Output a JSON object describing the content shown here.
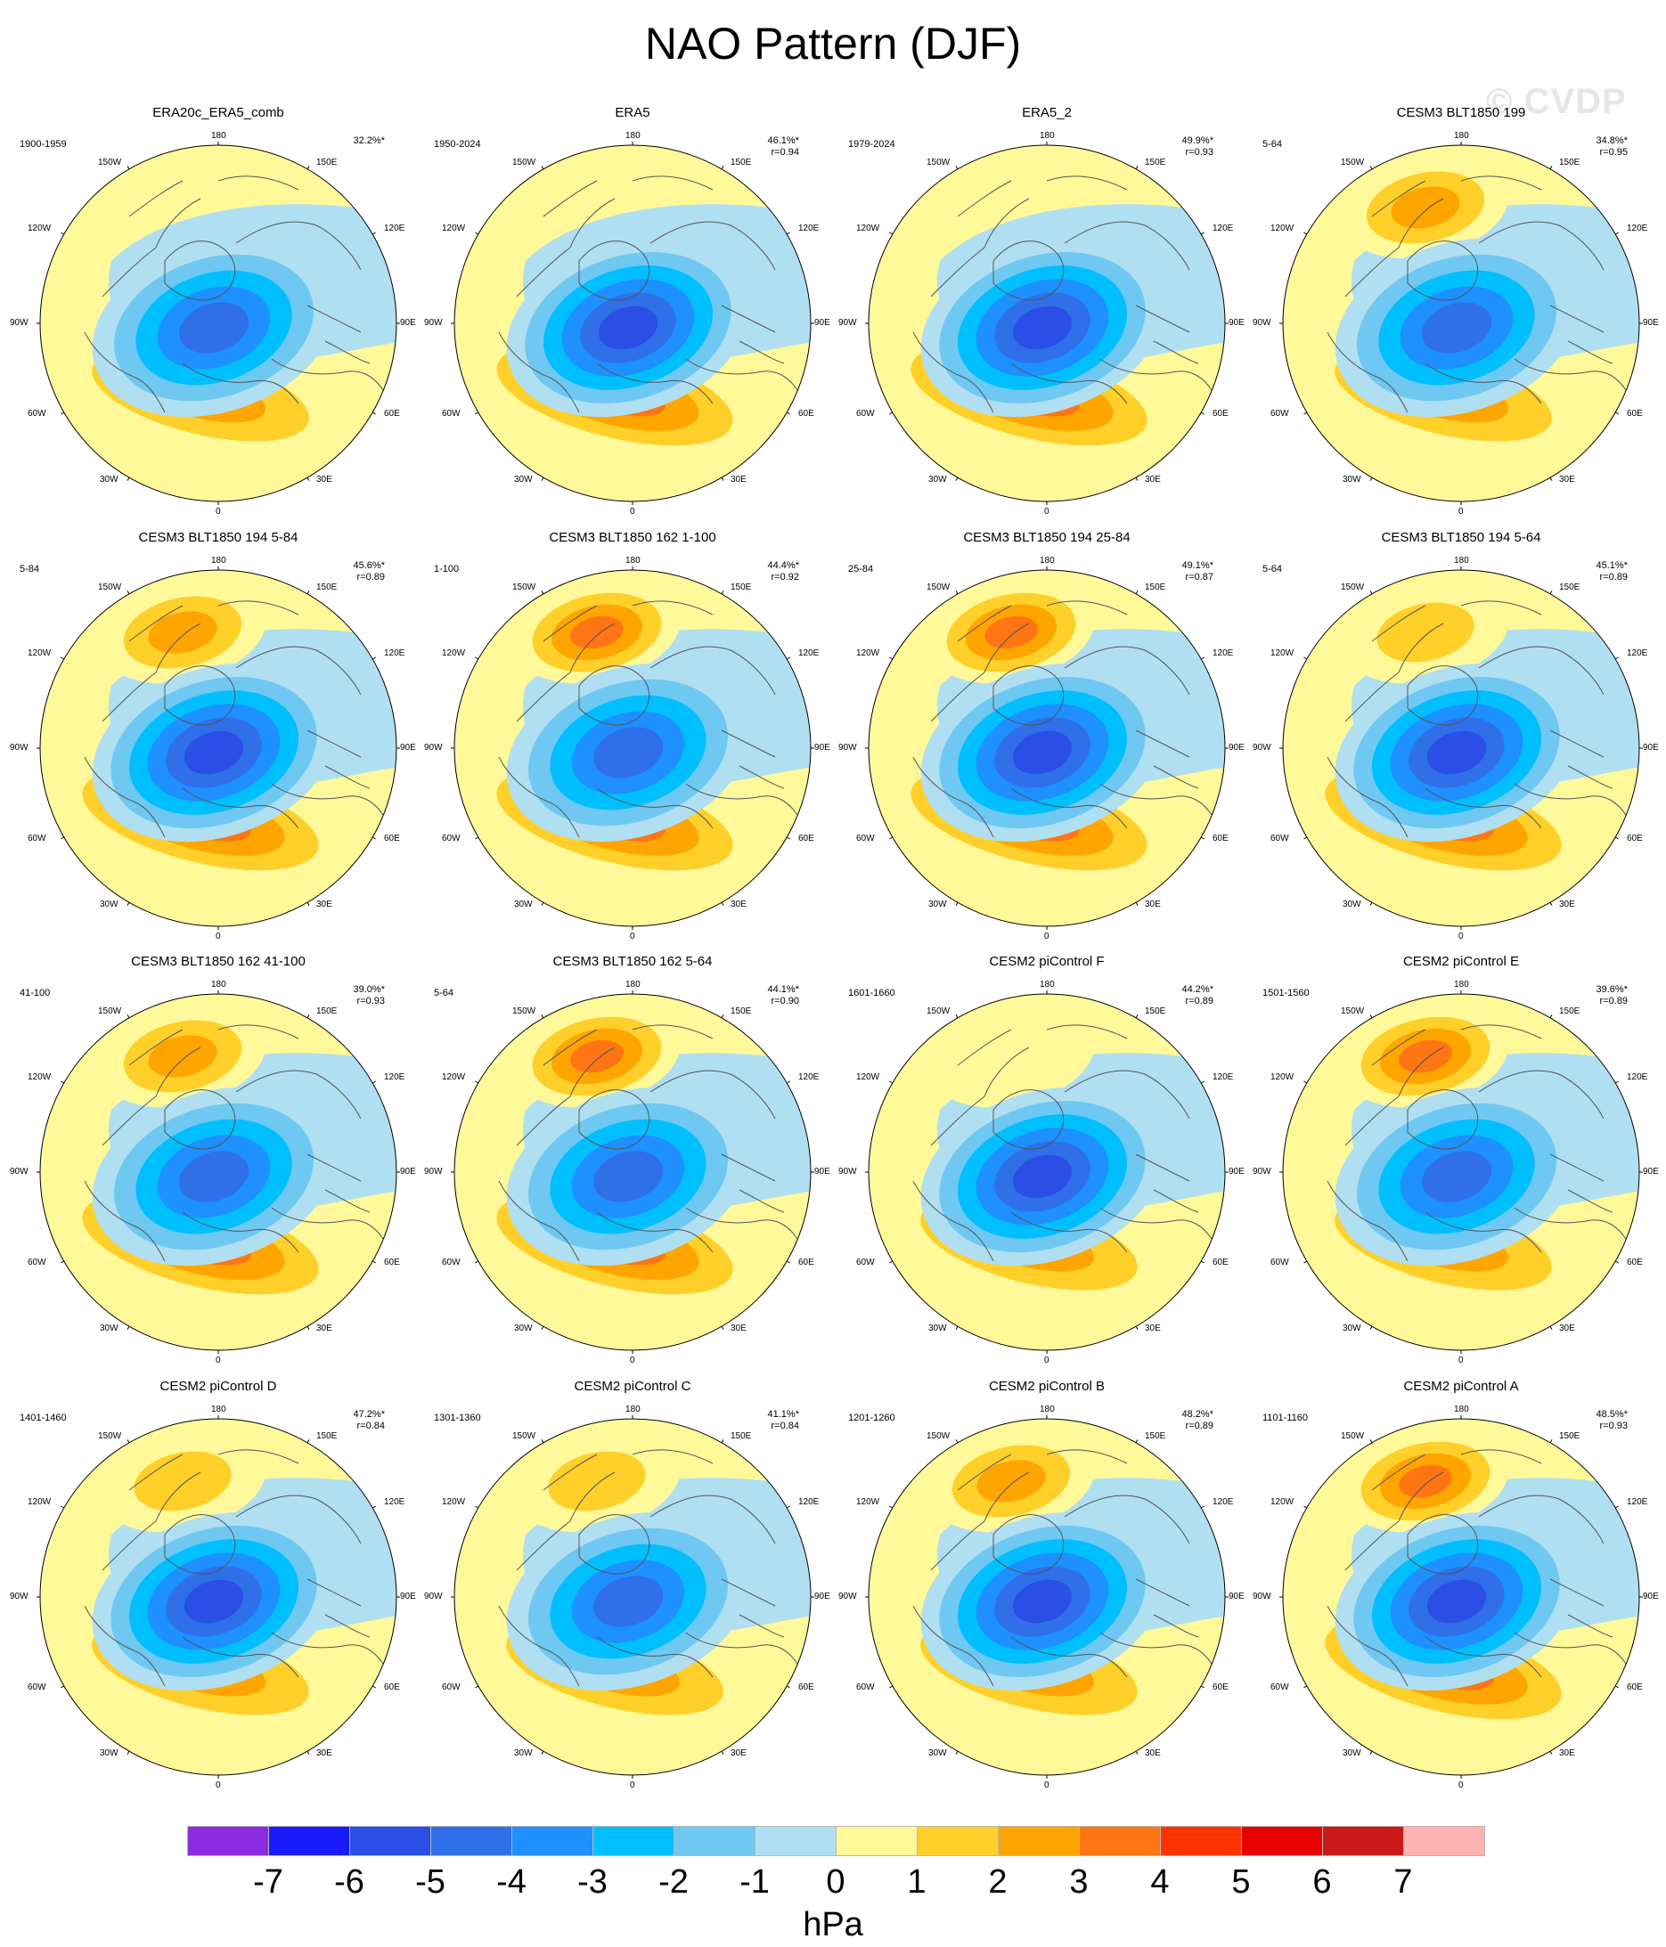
{
  "title": "NAO Pattern (DJF)",
  "watermark": "© CVDP",
  "units": "hPa",
  "longitude_labels": {
    "top": "180",
    "bottom": "0",
    "w150": "150W",
    "e150": "150E",
    "w120": "120W",
    "e120": "120E",
    "w90": "90W",
    "e90": "90E",
    "w60": "60W",
    "e60": "60E",
    "w30": "30W",
    "e30": "30E"
  },
  "colorbar": {
    "colors": [
      "#8a2be2",
      "#1a1aff",
      "#2b4ee6",
      "#2f6fe8",
      "#1e90ff",
      "#00bfff",
      "#6ec8f2",
      "#b0dff2",
      "#fff99a",
      "#ffd02a",
      "#ffa500",
      "#ff7514",
      "#ff3300",
      "#e60000",
      "#cc1a1a",
      "#ffb3b3"
    ],
    "labels": [
      "-7",
      "-6",
      "-5",
      "-4",
      "-3",
      "-2",
      "-1",
      "0",
      "1",
      "2",
      "3",
      "4",
      "5",
      "6",
      "7"
    ]
  },
  "panels": [
    {
      "title": "ERA20c_ERA5_comb",
      "period": "1900-1959",
      "pct": "32.2%*",
      "r": "",
      "pos": 2.6,
      "neg": 4.2,
      "pac": 0
    },
    {
      "title": "ERA5",
      "period": "1950-2024",
      "pct": "46.1%*",
      "r": "r=0.94",
      "pos": 3.6,
      "neg": 5.3,
      "pac": 0
    },
    {
      "title": "ERA5_2",
      "period": "1979-2024",
      "pct": "49.9%*",
      "r": "r=0.93",
      "pos": 3.4,
      "neg": 5.6,
      "pac": 0
    },
    {
      "title": "CESM3 BLT1850 199",
      "period": "5-64",
      "pct": "34.8%*",
      "r": "r=0.95",
      "pos": 2.8,
      "neg": 4.6,
      "pac": 2.4
    },
    {
      "title": "CESM3 BLT1850 194 5-84",
      "period": "5-84",
      "pct": "45.6%*",
      "r": "r=0.89",
      "pos": 3.3,
      "neg": 5.2,
      "pac": 2.6
    },
    {
      "title": "CESM3 BLT1850 162 1-100",
      "period": "1-100",
      "pct": "44.4%*",
      "r": "r=0.92",
      "pos": 3.2,
      "neg": 5.0,
      "pac": 3.3
    },
    {
      "title": "CESM3 BLT1850 194 25-84",
      "period": "25-84",
      "pct": "49.1%*",
      "r": "r=0.87",
      "pos": 3.5,
      "neg": 5.4,
      "pac": 3.1
    },
    {
      "title": "CESM3 BLT1850 194 5-64",
      "period": "5-64",
      "pct": "45.1%*",
      "r": "r=0.89",
      "pos": 3.3,
      "neg": 5.1,
      "pac": 1.8
    },
    {
      "title": "CESM3 BLT1850 162 41-100",
      "period": "41-100",
      "pct": "39.0%*",
      "r": "r=0.93",
      "pos": 3.2,
      "neg": 4.4,
      "pac": 2.6
    },
    {
      "title": "CESM3 BLT1850 162 5-64",
      "period": "5-64",
      "pct": "44.1%*",
      "r": "r=0.90",
      "pos": 3.1,
      "neg": 5.0,
      "pac": 3.3
    },
    {
      "title": "CESM2 piControl F",
      "period": "1601-1660",
      "pct": "44.2%*",
      "r": "r=0.89",
      "pos": 2.6,
      "neg": 5.1,
      "pac": 0.6
    },
    {
      "title": "CESM2 piControl E",
      "period": "1501-1560",
      "pct": "39.6%*",
      "r": "r=0.89",
      "pos": 2.7,
      "neg": 4.7,
      "pac": 3.1
    },
    {
      "title": "CESM2 piControl D",
      "period": "1401-1460",
      "pct": "47.2%*",
      "r": "r=0.84",
      "pos": 2.7,
      "neg": 5.4,
      "pac": 1.2
    },
    {
      "title": "CESM2 piControl C",
      "period": "1301-1360",
      "pct": "41.1%*",
      "r": "r=0.84",
      "pos": 2.3,
      "neg": 5.0,
      "pac": 1.1
    },
    {
      "title": "CESM2 piControl B",
      "period": "1201-1260",
      "pct": "48.2%*",
      "r": "r=0.89",
      "pos": 2.6,
      "neg": 5.6,
      "pac": 2.2
    },
    {
      "title": "CESM2 piControl A",
      "period": "1101-1160",
      "pct": "48.5%*",
      "r": "r=0.93",
      "pos": 3.2,
      "neg": 5.3,
      "pac": 3.6
    }
  ]
}
